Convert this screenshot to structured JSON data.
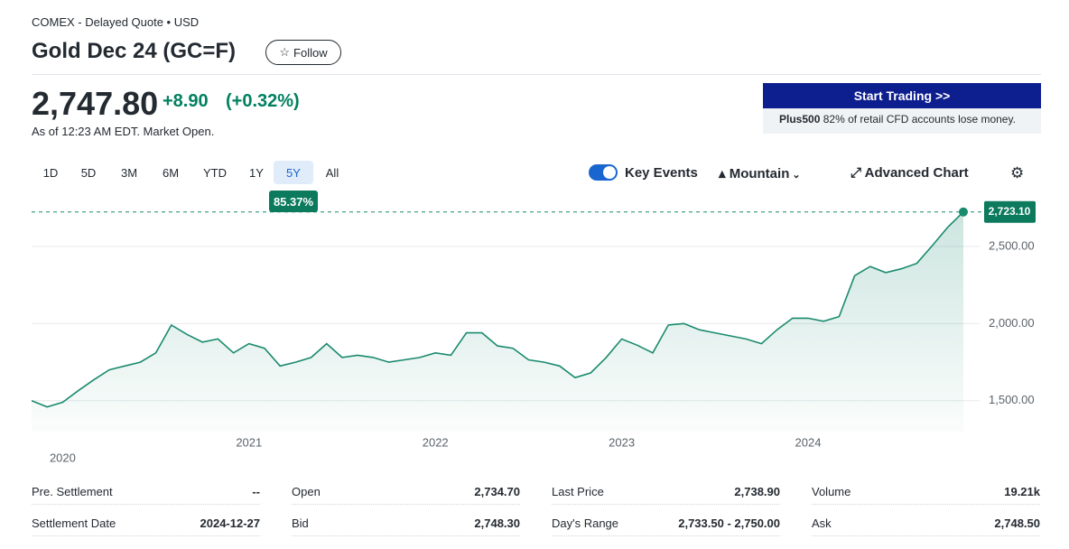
{
  "header": {
    "exchange": "COMEX - Delayed Quote • USD",
    "title": "Gold Dec 24 (GC=F)",
    "follow": "Follow",
    "price": "2,747.80",
    "change": "+8.90",
    "change_percent": "(+0.32%)",
    "as_of": "As of 12:23 AM EDT. Market Open."
  },
  "ad": {
    "button": "Start Trading >>",
    "brand": "Plus500",
    "text": "82% of retail CFD accounts lose money."
  },
  "ranges": {
    "items": [
      "1D",
      "5D",
      "3M",
      "6M",
      "YTD",
      "1Y",
      "5Y",
      "All"
    ],
    "selected": 6,
    "period_change": "85.37%"
  },
  "toolbar": {
    "key_events": "Key Events",
    "chart_type": "Mountain",
    "advanced": "Advanced Chart"
  },
  "chart_data": {
    "type": "area",
    "color": "#1a8a6e",
    "categories": [
      null,
      null,
      "2020",
      null,
      null,
      null,
      null,
      null,
      null,
      null,
      null,
      null,
      null,
      null,
      "2021",
      null,
      null,
      null,
      null,
      null,
      null,
      null,
      null,
      null,
      null,
      null,
      "2022",
      null,
      null,
      null,
      null,
      null,
      null,
      null,
      null,
      null,
      null,
      null,
      "2023",
      null,
      null,
      null,
      null,
      null,
      null,
      null,
      null,
      null,
      null,
      null,
      "2024",
      null,
      null,
      null,
      null,
      null,
      null,
      null,
      null,
      null,
      null
    ],
    "values": [
      1500,
      1460,
      1490,
      1565,
      1635,
      1700,
      1725,
      1750,
      1810,
      1990,
      1930,
      1880,
      1900,
      1810,
      1870,
      1840,
      1725,
      1750,
      1780,
      1870,
      1780,
      1795,
      1780,
      1750,
      1765,
      1780,
      1810,
      1795,
      1940,
      1940,
      1855,
      1840,
      1765,
      1750,
      1725,
      1650,
      1680,
      1780,
      1900,
      1860,
      1810,
      1990,
      2000,
      1960,
      1940,
      1920,
      1900,
      1870,
      1960,
      2035,
      2035,
      2015,
      2045,
      2310,
      2370,
      2330,
      2355,
      2390,
      2505,
      2625,
      2723.1
    ],
    "ylim": [
      1300,
      2780
    ],
    "yticks": [
      {
        "value": 1500,
        "label": "1,500.00"
      },
      {
        "value": 2000,
        "label": "2,000.00"
      },
      {
        "value": 2500,
        "label": "2,500.00"
      }
    ],
    "grid": true,
    "last_price": {
      "value": 2723.1,
      "label": "2,723.10"
    }
  },
  "stats": {
    "rows": [
      [
        [
          "Pre. Settlement",
          "--"
        ],
        [
          "Open",
          "2,734.70"
        ],
        [
          "Last Price",
          "2,738.90"
        ],
        [
          "Volume",
          "19.21k"
        ]
      ],
      [
        [
          "Settlement Date",
          "2024-12-27"
        ],
        [
          "Bid",
          "2,748.30"
        ],
        [
          "Day's Range",
          "2,733.50 - 2,750.00"
        ],
        [
          "Ask",
          "2,748.50"
        ]
      ]
    ]
  }
}
